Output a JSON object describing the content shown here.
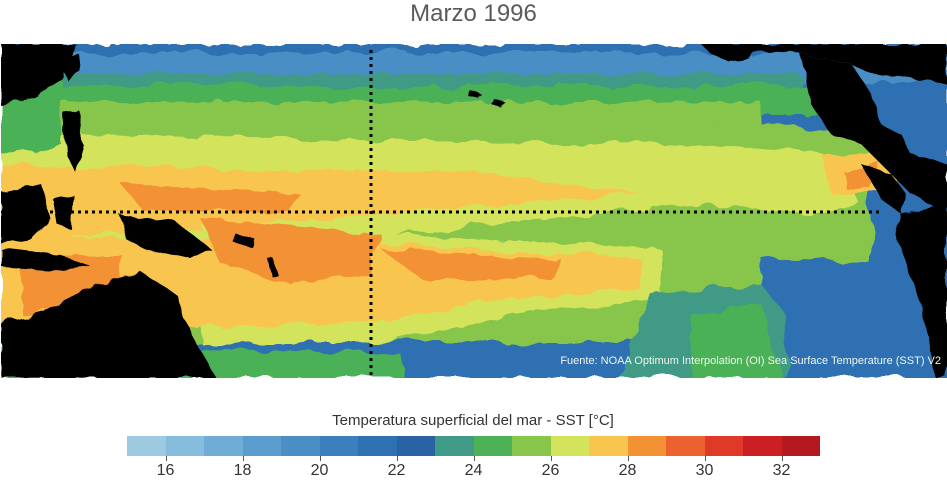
{
  "title": "Marzo 1996",
  "source": "Fuente: NOAA Optimum Interpolation (OI) Sea Surface Temperature (SST) V2",
  "legend": {
    "title": "Temperatura superficial del mar - SST  [°C]",
    "range": [
      15,
      33
    ],
    "colors": [
      "#9ecae1",
      "#86bcdc",
      "#6fadd6",
      "#5a9dce",
      "#4a8ec5",
      "#3c7fbc",
      "#2f70b2",
      "#2a63a3",
      "#3f9a86",
      "#4cb157",
      "#87c54b",
      "#d4e35c",
      "#f8c64f",
      "#f39135",
      "#ec612d",
      "#df3a27",
      "#cc1f24",
      "#b3191f"
    ],
    "ticks": [
      16,
      18,
      20,
      22,
      24,
      26,
      28,
      30,
      32
    ],
    "tick_labels": [
      "16",
      "18",
      "20",
      "22",
      "24",
      "26",
      "28",
      "30",
      "32"
    ]
  },
  "map": {
    "land_color": "#000000",
    "equator_line": "dotted",
    "dateline": "dotted"
  }
}
